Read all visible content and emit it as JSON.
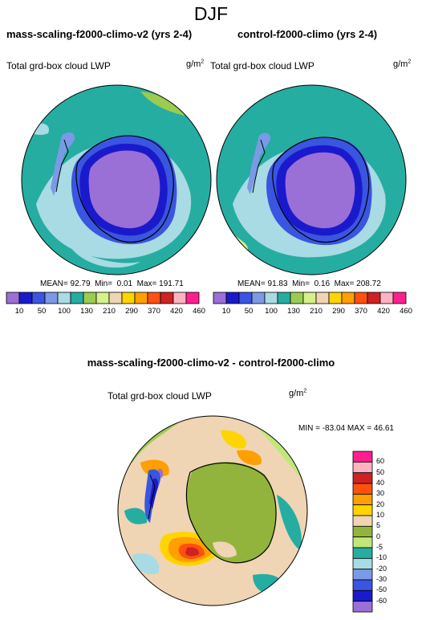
{
  "title": "DJF",
  "panels": [
    {
      "title": "mass-scaling-f2000-climo-v2 (yrs 2-4)",
      "field": "Total grd-box cloud LWP",
      "units_base": "g/m",
      "units_exp": "2",
      "stats": {
        "mean_label": "MEAN=",
        "mean": "92.79",
        "min_label": "Min=",
        "min": "0.01",
        "max_label": "Max=",
        "max": "191.71"
      }
    },
    {
      "title": "control-f2000-climo (yrs 2-4)",
      "field": "Total grd-box cloud LWP",
      "units_base": "g/m",
      "units_exp": "2",
      "stats": {
        "mean_label": "MEAN=",
        "mean": "91.83",
        "min_label": "Min=",
        "min": "0.16",
        "max_label": "Max=",
        "max": "208.72"
      }
    }
  ],
  "top_colorbar": {
    "colors": [
      "#9a6fd6",
      "#1a1acc",
      "#3a55e0",
      "#7a9ae6",
      "#a8dbe3",
      "#26ada2",
      "#9ccc4f",
      "#d6f08a",
      "#efd5b3",
      "#ffd400",
      "#ff9f00",
      "#ff5010",
      "#cf2222",
      "#ffb3c0",
      "#ff1f8f"
    ],
    "labels": [
      "10",
      "50",
      "100",
      "130",
      "210",
      "290",
      "370",
      "420",
      "460"
    ]
  },
  "diff_panel": {
    "title": "mass-scaling-f2000-climo-v2 - control-f2000-climo",
    "field": "Total grd-box cloud LWP",
    "units_base": "g/m",
    "units_exp": "2",
    "minmax": "MIN = -83.04 MAX =  46.61"
  },
  "diff_colorbar": {
    "colors": [
      "#ff1f8f",
      "#ffb3c0",
      "#cf2222",
      "#ff5010",
      "#ff9f00",
      "#ffd400",
      "#efd5b3",
      "#93b43c",
      "#bfe878",
      "#26ada2",
      "#a8dbe3",
      "#7a9ae6",
      "#3a55e0",
      "#1a1acc",
      "#9a6fd6"
    ],
    "labels": [
      "60",
      "50",
      "40",
      "30",
      "20",
      "10",
      "5",
      "0",
      "-5",
      "-10",
      "-20",
      "-30",
      "-50",
      "-60"
    ]
  },
  "colors": {
    "lwp_low": "#9a6fd6",
    "lwp_teal": "#26ada2",
    "lwp_light": "#a8dbe3",
    "diff_zero": "#93b43c",
    "diff_pos": "#ffd400"
  }
}
